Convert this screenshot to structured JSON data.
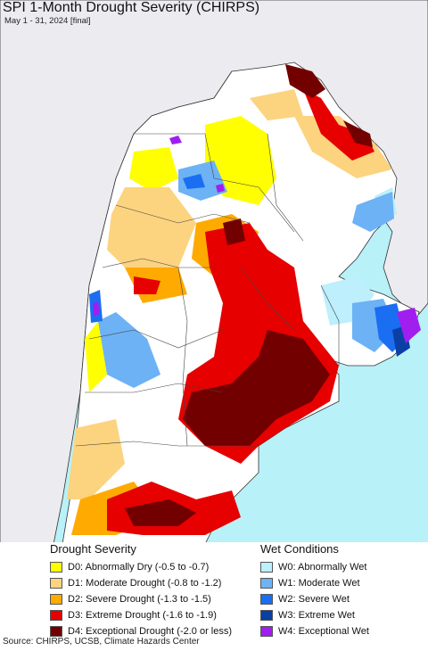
{
  "title": "SPI 1-Month Drought Severity (CHIRPS)",
  "subtitle": "May 1 - 31, 2024 [final]",
  "colors": {
    "ocean": "#b8f1f8",
    "land_outside": "#ececf0",
    "nodata": "#ffffff",
    "D0": "#ffff00",
    "D1": "#fcd37f",
    "D2": "#ffaa00",
    "D3": "#e60000",
    "D4": "#730000",
    "W0": "#bdeffc",
    "W1": "#6db2f5",
    "W2": "#1a6ef2",
    "W3": "#0a3fa6",
    "W4": "#a01fef"
  },
  "legend": {
    "drought_heading": "Drought Severity",
    "drought_items": [
      {
        "label": "D0: Abnormally Dry (-0.5 to -0.7)",
        "color": "#ffff00"
      },
      {
        "label": "D1: Moderate Drought (-0.8 to -1.2)",
        "color": "#fcd37f"
      },
      {
        "label": "D2: Severe Drought (-1.3 to -1.5)",
        "color": "#ffaa00"
      },
      {
        "label": "D3: Extreme Drought (-1.6 to -1.9)",
        "color": "#e60000"
      },
      {
        "label": "D4: Exceptional Drought (-2.0 or less)",
        "color": "#730000"
      }
    ],
    "wet_heading": "Wet Conditions",
    "wet_items": [
      {
        "label": "W0: Abnormally Wet",
        "color": "#bdeffc"
      },
      {
        "label": "W1: Moderate Wet",
        "color": "#6db2f5"
      },
      {
        "label": "W2: Severe Wet",
        "color": "#1a6ef2"
      },
      {
        "label": "W3: Extreme Wet",
        "color": "#0a3fa6"
      },
      {
        "label": "W4: Exceptional Wet",
        "color": "#a01fef"
      }
    ]
  },
  "source": "Source: CHIRPS, UCSB, Climate Hazards Center"
}
